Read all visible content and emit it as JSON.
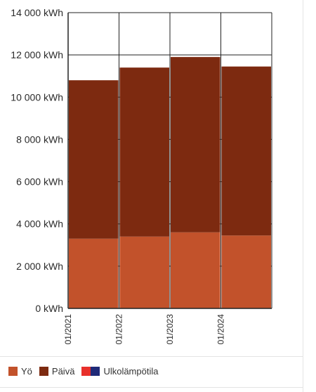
{
  "chart_data": {
    "type": "bar",
    "stacked": true,
    "categories": [
      "01/2021",
      "01/2022",
      "01/2023",
      "01/2024"
    ],
    "series": [
      {
        "name": "Yö",
        "color": "#c2522b",
        "values": [
          3300,
          3400,
          3600,
          3450
        ]
      },
      {
        "name": "Päivä",
        "color": "#7d2a10",
        "values": [
          7500,
          8000,
          8300,
          8000
        ]
      }
    ],
    "ylim": [
      0,
      14000
    ],
    "yticks": [
      {
        "value": 0,
        "label": "0 kWh"
      },
      {
        "value": 2000,
        "label": "2 000 kWh"
      },
      {
        "value": 4000,
        "label": "4 000 kWh"
      },
      {
        "value": 6000,
        "label": "6 000 kWh"
      },
      {
        "value": 8000,
        "label": "8 000 kWh"
      },
      {
        "value": 10000,
        "label": "10 000 kWh"
      },
      {
        "value": 12000,
        "label": "12 000 kWh"
      },
      {
        "value": 14000,
        "label": "14 000 kWh"
      }
    ],
    "grid": true,
    "legend_position": "bottom-left"
  },
  "legend": {
    "items": [
      {
        "label": "Yö",
        "colors": [
          "#c2522b"
        ]
      },
      {
        "label": "Päivä",
        "colors": [
          "#7d2a10"
        ]
      },
      {
        "label": "Ulkolämpötila",
        "colors": [
          "#e8302b",
          "#1f2a78"
        ]
      }
    ]
  }
}
